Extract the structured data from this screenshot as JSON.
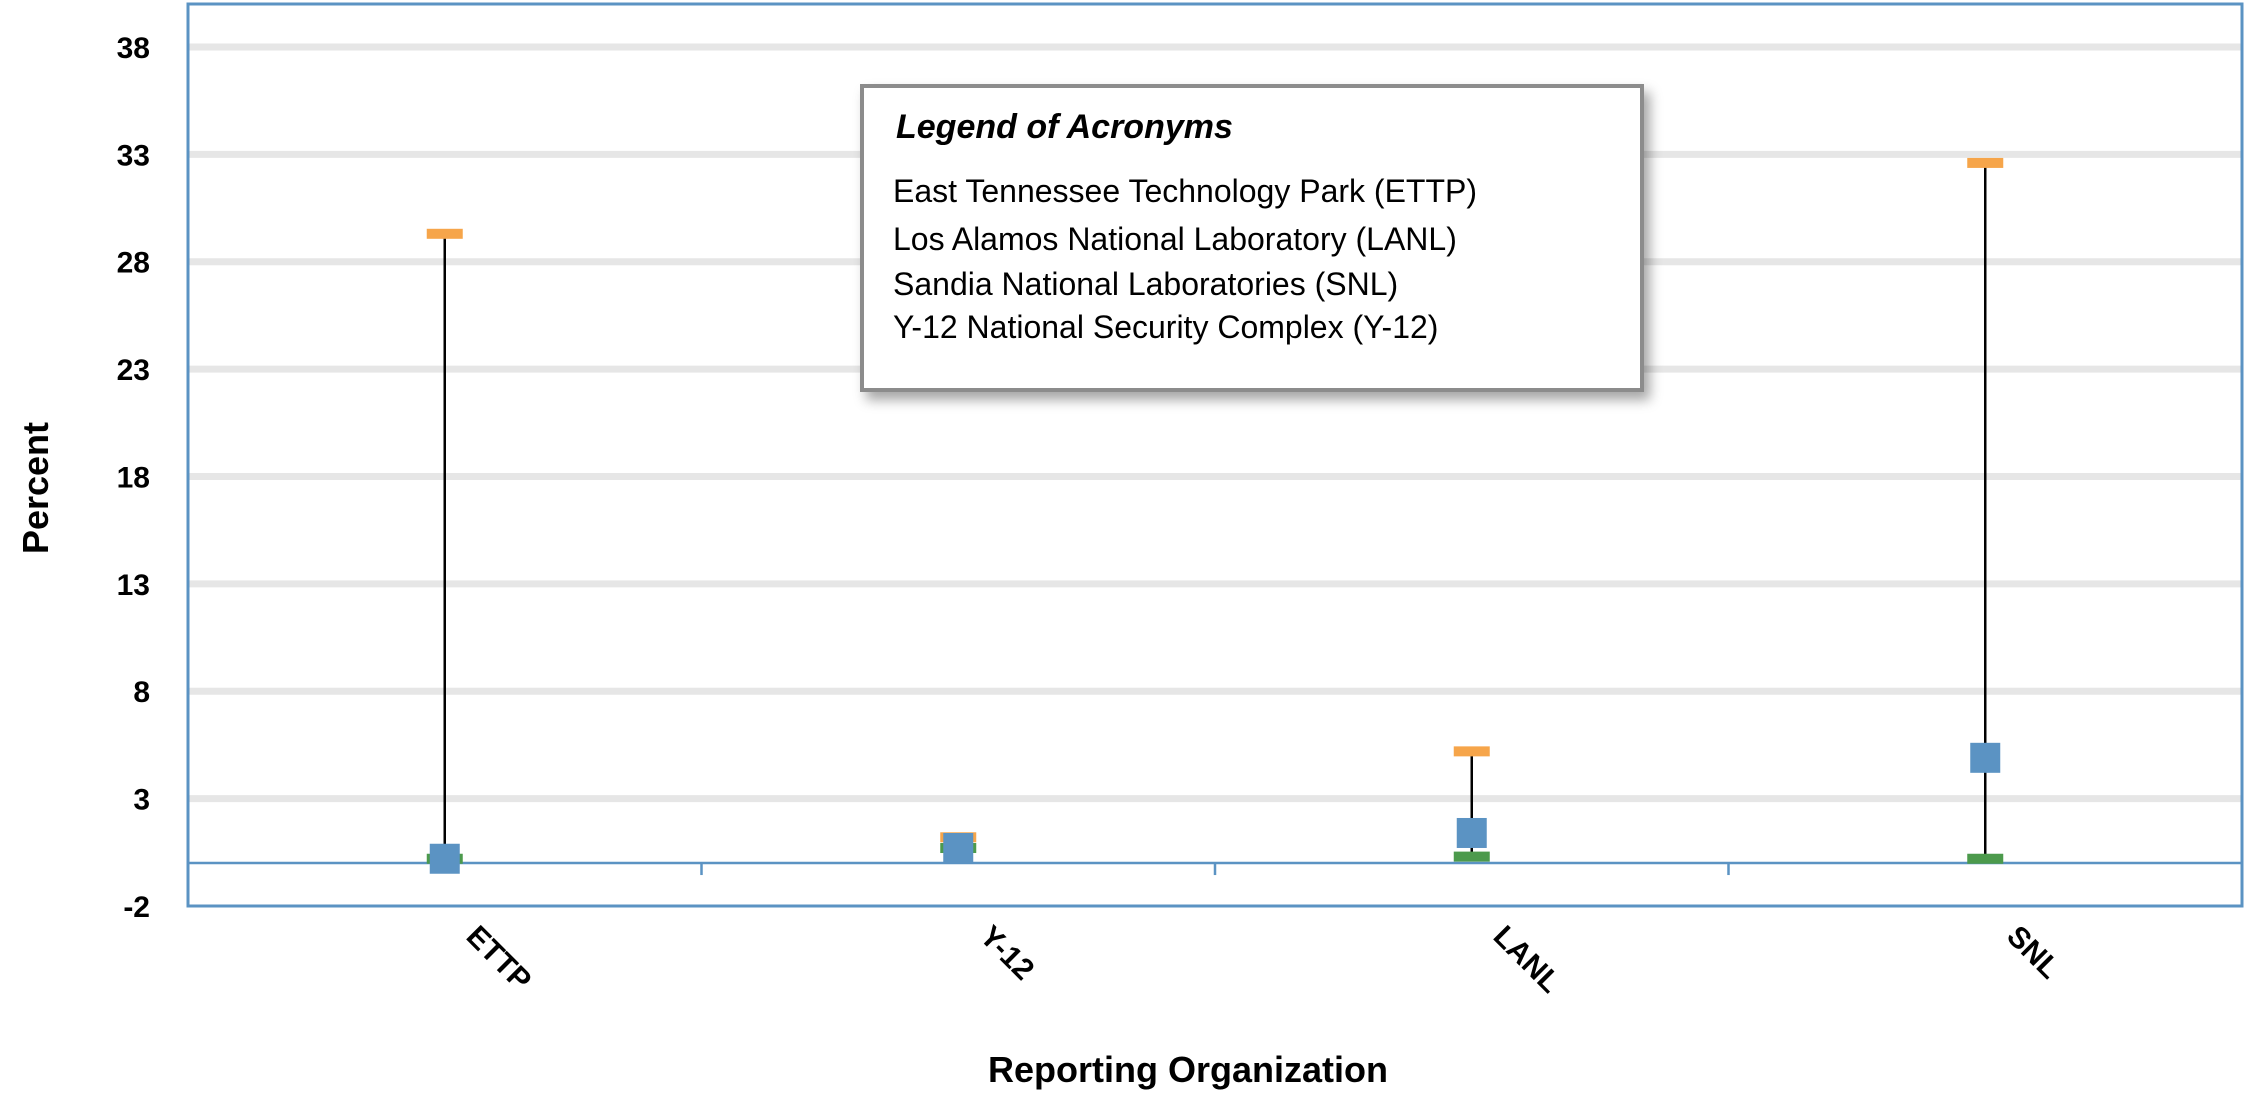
{
  "chart_data": {
    "type": "scatter",
    "title": "",
    "xlabel": "Reporting Organization",
    "ylabel": "Percent",
    "ylim": [
      -2,
      40
    ],
    "yticks": [
      -2,
      3,
      8,
      13,
      18,
      23,
      28,
      33,
      38
    ],
    "grid": true,
    "categories": [
      "ETTP",
      "Y-12",
      "LANL",
      "SNL"
    ],
    "series": [
      {
        "key": "max",
        "color": "#F6A54A",
        "marker": "dash",
        "values": [
          29.3,
          1.2,
          5.2,
          32.6
        ]
      },
      {
        "key": "mean",
        "color": "#5B93C3",
        "marker": "square",
        "values": [
          0.2,
          0.7,
          1.4,
          4.9
        ]
      },
      {
        "key": "min",
        "color": "#4C9A4C",
        "marker": "dash",
        "values": [
          0.2,
          0.7,
          0.3,
          0.2
        ]
      }
    ],
    "legend_box": {
      "title": "Legend of Acronyms",
      "entries": [
        "East Tennessee Technology Park (ETTP)",
        "Los Alamos National Laboratory (LANL)",
        "Sandia National Laboratories (SNL)",
        "Y-12 National Security Complex (Y-12)"
      ],
      "placement": "top-center"
    },
    "colors": {
      "axis": "#5B93C3",
      "grid": "#E6E6E6",
      "range_line": "#000000"
    }
  }
}
